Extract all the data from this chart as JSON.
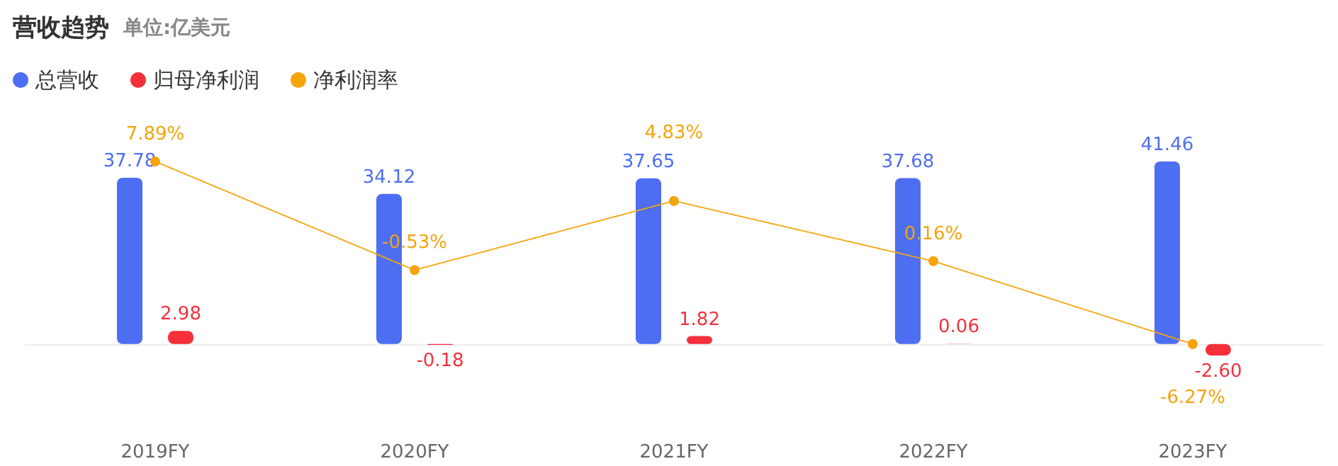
{
  "chart_data": {
    "type": "bar",
    "title": "营收趋势",
    "subtitle": "单位:亿美元",
    "categories": [
      "2019FY",
      "2020FY",
      "2021FY",
      "2022FY",
      "2023FY"
    ],
    "series": [
      {
        "name": "总营收",
        "color": "#4e6ef2",
        "values": [
          37.78,
          34.12,
          37.65,
          37.68,
          41.46
        ],
        "value_labels": [
          "37.78",
          "34.12",
          "37.65",
          "37.68",
          "41.46"
        ]
      },
      {
        "name": "归母净利润",
        "color": "#f5303d",
        "values": [
          2.98,
          -0.18,
          1.82,
          0.06,
          -2.6
        ],
        "value_labels": [
          "2.98",
          "-0.18",
          "1.82",
          "0.06",
          "-2.60"
        ]
      },
      {
        "name": "净利润率",
        "type": "line",
        "axis": "y2",
        "color": "#f5a40c",
        "values": [
          7.89,
          -0.53,
          4.83,
          0.16,
          -6.27
        ],
        "value_labels": [
          "7.89%",
          "-0.53%",
          "4.83%",
          "0.16%",
          "-6.27%"
        ],
        "line_style": "dotted",
        "marker": "circle"
      }
    ],
    "tick_labels": "x",
    "grid": false,
    "legend": "top left"
  }
}
